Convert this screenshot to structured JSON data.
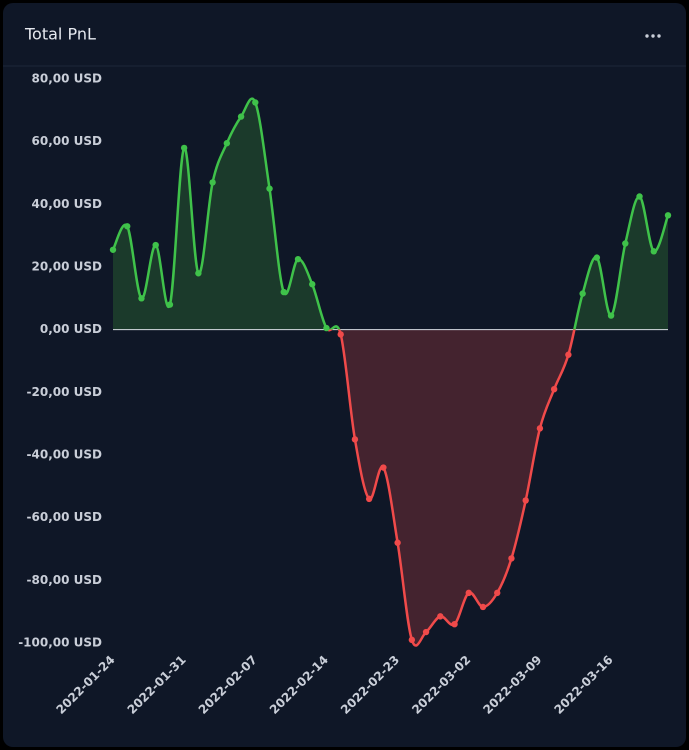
{
  "chart_data": {
    "type": "line",
    "title": "Total PnL",
    "categories": [
      "2022-01-24",
      null,
      null,
      null,
      null,
      "2022-01-31",
      null,
      null,
      null,
      null,
      "2022-02-07",
      null,
      null,
      null,
      null,
      "2022-02-14",
      null,
      null,
      null,
      null,
      "2022-02-23",
      null,
      null,
      null,
      null,
      "2022-03-02",
      null,
      null,
      null,
      null,
      "2022-03-09",
      null,
      null,
      null,
      null,
      "2022-03-16",
      null,
      null,
      null,
      null
    ],
    "values": [
      25.5,
      33,
      10,
      27,
      8,
      58,
      18,
      47,
      59.5,
      68,
      72.5,
      45,
      12,
      22.5,
      14.5,
      0.5,
      -1.5,
      -35,
      -54,
      -44,
      -68,
      -99,
      -96.5,
      -91.5,
      -94,
      -84,
      -88.5,
      -84,
      -73,
      -54.5,
      -31.5,
      -19,
      -8,
      11.5,
      23,
      4.5,
      27.5,
      42.5,
      25,
      36.5
    ],
    "positive_color": "#3fc24a",
    "negative_color": "#f04a4a",
    "ylim": [
      -100,
      80
    ],
    "yticks": [
      {
        "value": -100,
        "label": "-100,00 USD"
      },
      {
        "value": -80,
        "label": "-80,00 USD"
      },
      {
        "value": -60,
        "label": "-60,00 USD"
      },
      {
        "value": -40,
        "label": "-40,00 USD"
      },
      {
        "value": -20,
        "label": "-20,00 USD"
      },
      {
        "value": 0,
        "label": "0,00 USD"
      },
      {
        "value": 20,
        "label": "20,00 USD"
      },
      {
        "value": 40,
        "label": "40,00 USD"
      },
      {
        "value": 60,
        "label": "60,00 USD"
      },
      {
        "value": 80,
        "label": "80,00 USD"
      }
    ]
  }
}
